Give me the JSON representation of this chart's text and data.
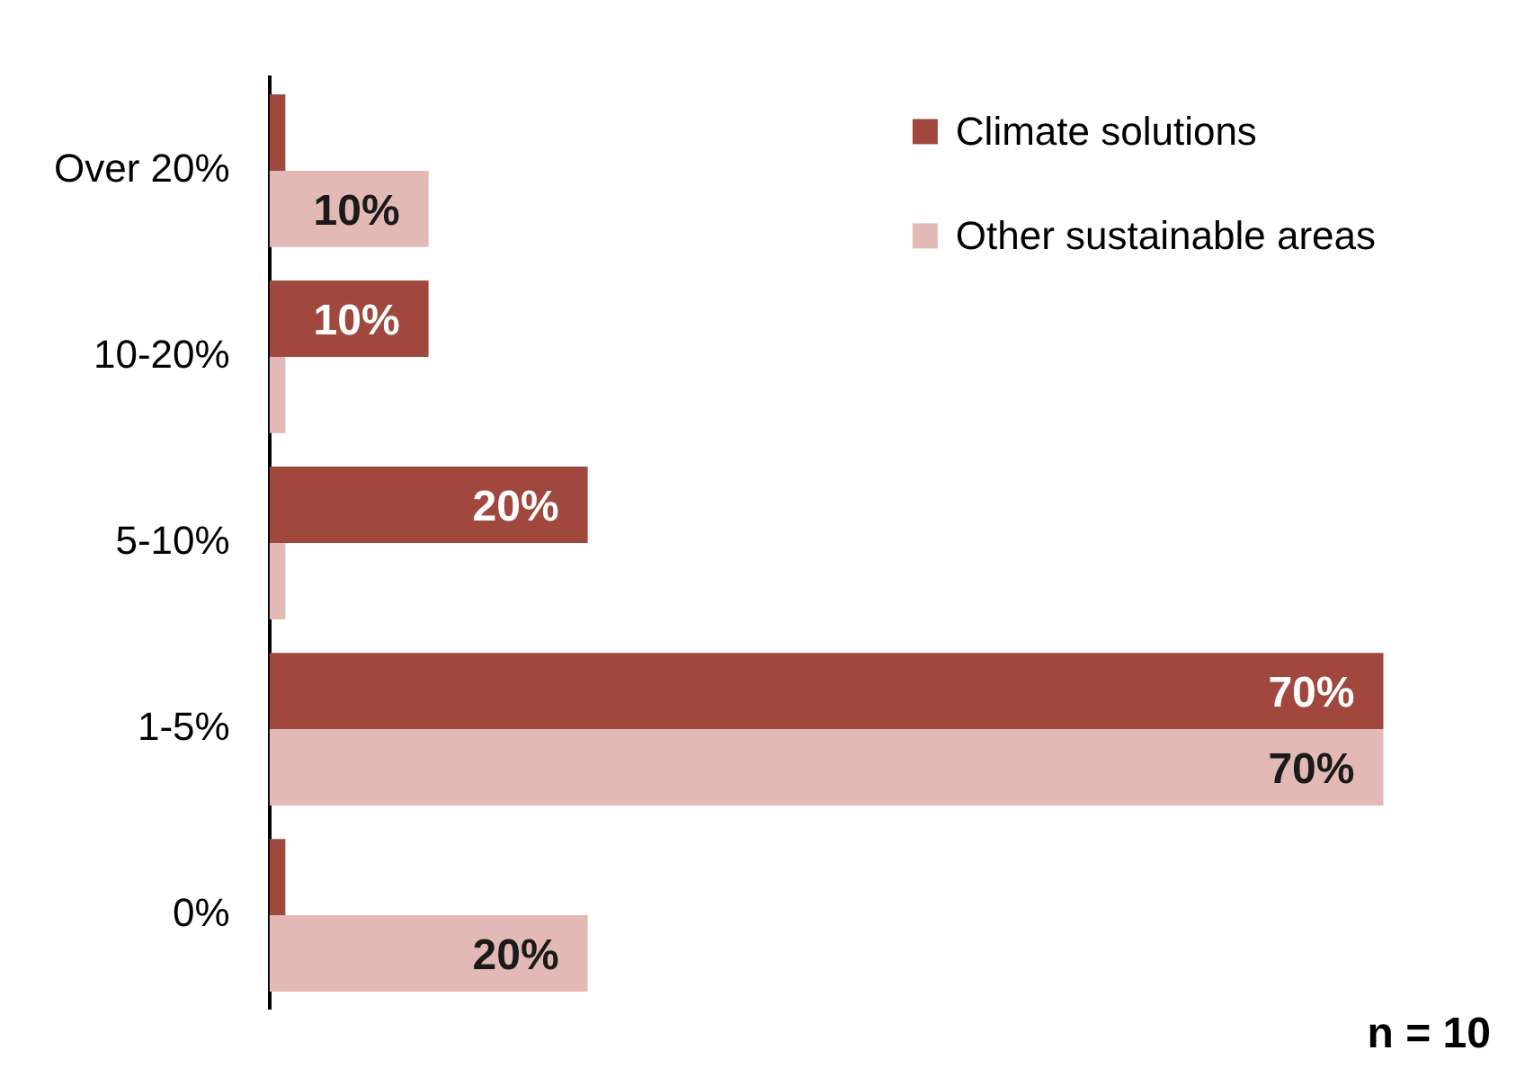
{
  "chart_data": {
    "type": "bar",
    "orientation": "horizontal",
    "categories": [
      "Over 20%",
      "10-20%",
      "5-10%",
      "1-5%",
      "0%"
    ],
    "series": [
      {
        "name": "Climate solutions",
        "color": "#a0473e",
        "values": [
          1,
          10,
          20,
          70,
          1
        ],
        "value_labels": [
          null,
          "10%",
          "20%",
          "70%",
          null
        ]
      },
      {
        "name": "Other sustainable areas",
        "color": "#e3b9b5",
        "values": [
          10,
          1,
          1,
          70,
          20
        ],
        "value_labels": [
          "10%",
          null,
          null,
          "70%",
          "20%"
        ]
      }
    ],
    "legend": "top right",
    "tick_labels": "y",
    "annotations": [
      "n = 10"
    ]
  }
}
